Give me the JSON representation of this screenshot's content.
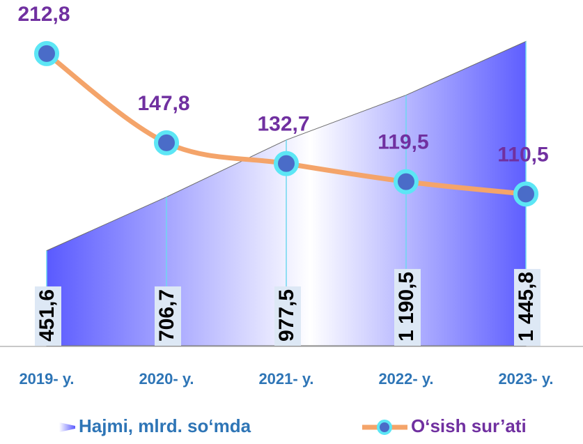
{
  "chart_data": {
    "type": "combo",
    "categories": [
      "2019- y.",
      "2020- y.",
      "2021- y.",
      "2022- y.",
      "2023- y."
    ],
    "series": [
      {
        "name": "Hajmi, mlrd. so‘mda",
        "type": "area",
        "color": "#5b5bff",
        "values": [
          451.6,
          706.7,
          977.5,
          1190.5,
          1445.8
        ],
        "value_labels": [
          "451,6",
          "706,7",
          "977,5",
          "1 190,5",
          "1 445,8"
        ]
      },
      {
        "name": "O‘sish sur’ati",
        "type": "line",
        "axis": "y2",
        "color": "#f4a46a",
        "marker_color": "#4a6cc8",
        "values": [
          212.8,
          147.8,
          132.7,
          119.5,
          110.5
        ],
        "value_labels": [
          "212,8",
          "147,8",
          "132,7",
          "119,5",
          "110,5"
        ]
      }
    ],
    "ylim": [
      0,
      1500
    ],
    "y2lim": [
      0,
      230
    ]
  }
}
